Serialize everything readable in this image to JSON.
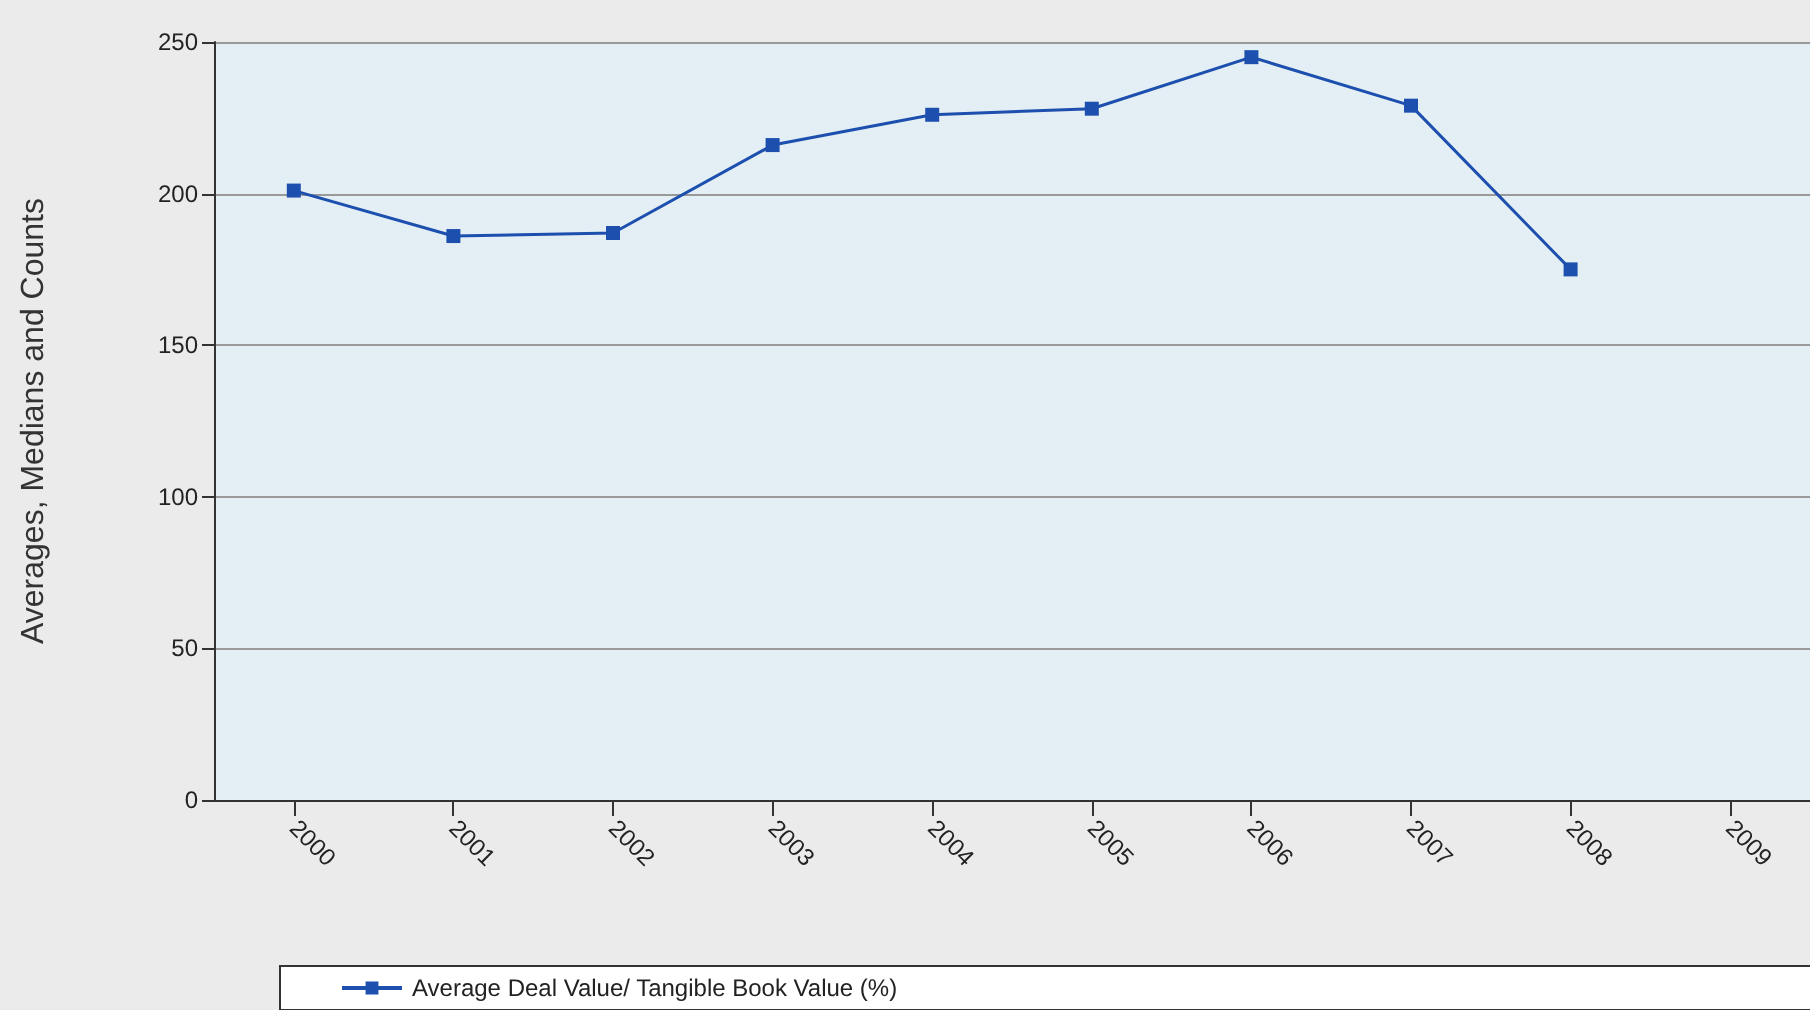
{
  "chart_data": {
    "type": "line",
    "ylabel": "Averages, Medians and Counts",
    "categories": [
      "2000",
      "2001",
      "2002",
      "2003",
      "2004",
      "2005",
      "2006",
      "2007",
      "2008",
      "2009"
    ],
    "series": [
      {
        "name": "Average Deal Value/ Tangible Book Value (%)",
        "color": "#1d4fae",
        "values": [
          201,
          186,
          187,
          216,
          226,
          228,
          245,
          229,
          175,
          null
        ]
      }
    ],
    "ylim": [
      0,
      250
    ],
    "yticks": [
      0,
      50,
      100,
      150,
      200,
      250
    ],
    "grid": "y",
    "legend": "bottom",
    "marker": "square",
    "line_style": "solid"
  }
}
